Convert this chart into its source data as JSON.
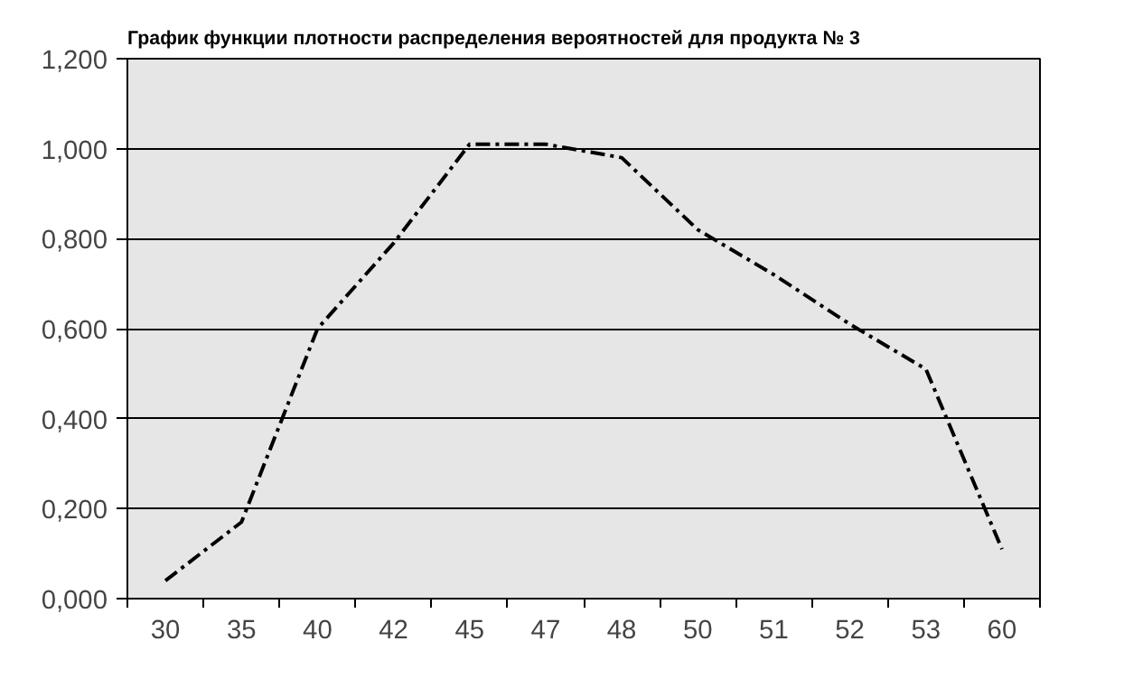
{
  "chart_data": {
    "type": "line",
    "title": "График функции плотности распределения вероятностей для продукта № 3",
    "categories": [
      "30",
      "35",
      "40",
      "42",
      "45",
      "47",
      "48",
      "50",
      "51",
      "52",
      "53",
      "60"
    ],
    "series": [
      {
        "color": "#000000",
        "values": [
          0.04,
          0.17,
          0.6,
          0.79,
          1.01,
          1.01,
          0.98,
          0.82,
          0.72,
          0.61,
          0.51,
          0.11
        ]
      }
    ],
    "ylim": [
      0,
      1.2
    ],
    "yticks": [
      {
        "value": 0,
        "label": "0,000"
      },
      {
        "value": 0.2,
        "label": "0,200"
      },
      {
        "value": 0.4,
        "label": "0,400"
      },
      {
        "value": 0.6,
        "label": "0,600"
      },
      {
        "value": 0.8,
        "label": "0,800"
      },
      {
        "value": 1.0,
        "label": "1,000"
      },
      {
        "value": 1.2,
        "label": "1,200"
      }
    ],
    "grid": "y",
    "marker": "none",
    "line_style": "dashdot"
  }
}
